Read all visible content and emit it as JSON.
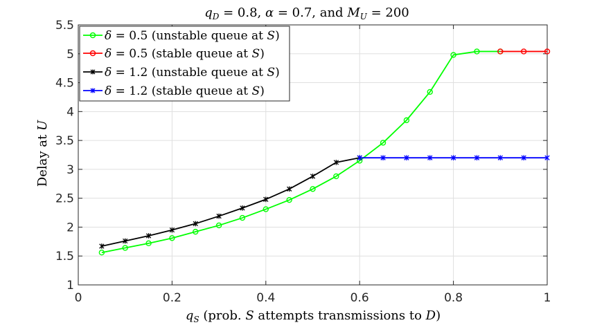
{
  "chart_data": {
    "type": "line",
    "title": "q_D = 0.8, α = 0.7, and M_U = 200",
    "xlabel": "q_S (prob. S attempts transmissions to D)",
    "ylabel": "Delay at U",
    "xlim": [
      0,
      1
    ],
    "ylim": [
      1,
      5.5
    ],
    "xticks": [
      0,
      0.2,
      0.4,
      0.6,
      0.8,
      1
    ],
    "xtick_labels": [
      "0",
      "0.2",
      "0.4",
      "0.6",
      "0.8",
      "1"
    ],
    "yticks": [
      1,
      1.5,
      2,
      2.5,
      3,
      3.5,
      4,
      4.5,
      5,
      5.5
    ],
    "ytick_labels": [
      "1",
      "1.5",
      "2",
      "2.5",
      "3",
      "3.5",
      "4",
      "4.5",
      "5",
      "5.5"
    ],
    "grid": true,
    "legend_position": "top-left",
    "series": [
      {
        "name": "δ = 0.5 (unstable queue at S)",
        "color": "#00ff00",
        "marker": "circle",
        "x": [
          0.05,
          0.1,
          0.15,
          0.2,
          0.25,
          0.3,
          0.35,
          0.4,
          0.45,
          0.5,
          0.55,
          0.6,
          0.65,
          0.7,
          0.75,
          0.8,
          0.85,
          0.9
        ],
        "y": [
          1.56,
          1.64,
          1.72,
          1.81,
          1.92,
          2.03,
          2.16,
          2.31,
          2.47,
          2.66,
          2.88,
          3.15,
          3.46,
          3.85,
          4.34,
          4.98,
          5.04,
          5.04
        ]
      },
      {
        "name": "δ = 0.5 (stable queue at S)",
        "color": "#ff0000",
        "marker": "circle",
        "x": [
          0.9,
          0.95,
          1.0
        ],
        "y": [
          5.04,
          5.04,
          5.04
        ]
      },
      {
        "name": "δ = 1.2 (unstable queue at S)",
        "color": "#000000",
        "marker": "asterisk",
        "x": [
          0.05,
          0.1,
          0.15,
          0.2,
          0.25,
          0.3,
          0.35,
          0.4,
          0.45,
          0.5,
          0.55,
          0.6
        ],
        "y": [
          1.67,
          1.76,
          1.85,
          1.95,
          2.06,
          2.19,
          2.33,
          2.48,
          2.66,
          2.88,
          3.12,
          3.2
        ]
      },
      {
        "name": "δ = 1.2 (stable queue at S)",
        "color": "#0000ff",
        "marker": "asterisk",
        "x": [
          0.6,
          0.65,
          0.7,
          0.75,
          0.8,
          0.85,
          0.9,
          0.95,
          1.0
        ],
        "y": [
          3.2,
          3.2,
          3.2,
          3.2,
          3.2,
          3.2,
          3.2,
          3.2,
          3.2
        ]
      }
    ],
    "legend": {
      "entries": [
        {
          "delta_symbol": "δ",
          "eq": " = 0.5 (unstable queue at ",
          "S": "S",
          "close": ")"
        },
        {
          "delta_symbol": "δ",
          "eq": " = 0.5 (stable queue at ",
          "S": "S",
          "close": ")"
        },
        {
          "delta_symbol": "δ",
          "eq": " = 1.2 (unstable queue at ",
          "S": "S",
          "close": ")"
        },
        {
          "delta_symbol": "δ",
          "eq": " = 1.2 (stable queue at ",
          "S": "S",
          "close": ")"
        }
      ]
    },
    "title_parts": {
      "q": "q",
      "qsub": "D",
      "p1": " = 0.8, ",
      "alpha": "α",
      "p2": " = 0.7, and ",
      "M": "M",
      "msub": "U",
      "p3": " = 200"
    },
    "xlabel_parts": {
      "q": "q",
      "qsub": "S",
      "p1": " (prob. ",
      "S": "S",
      "p2": " attempts transmissions to ",
      "D": "D",
      "p3": ")"
    },
    "ylabel_parts": {
      "text": "Delay at ",
      "U": "U"
    }
  }
}
